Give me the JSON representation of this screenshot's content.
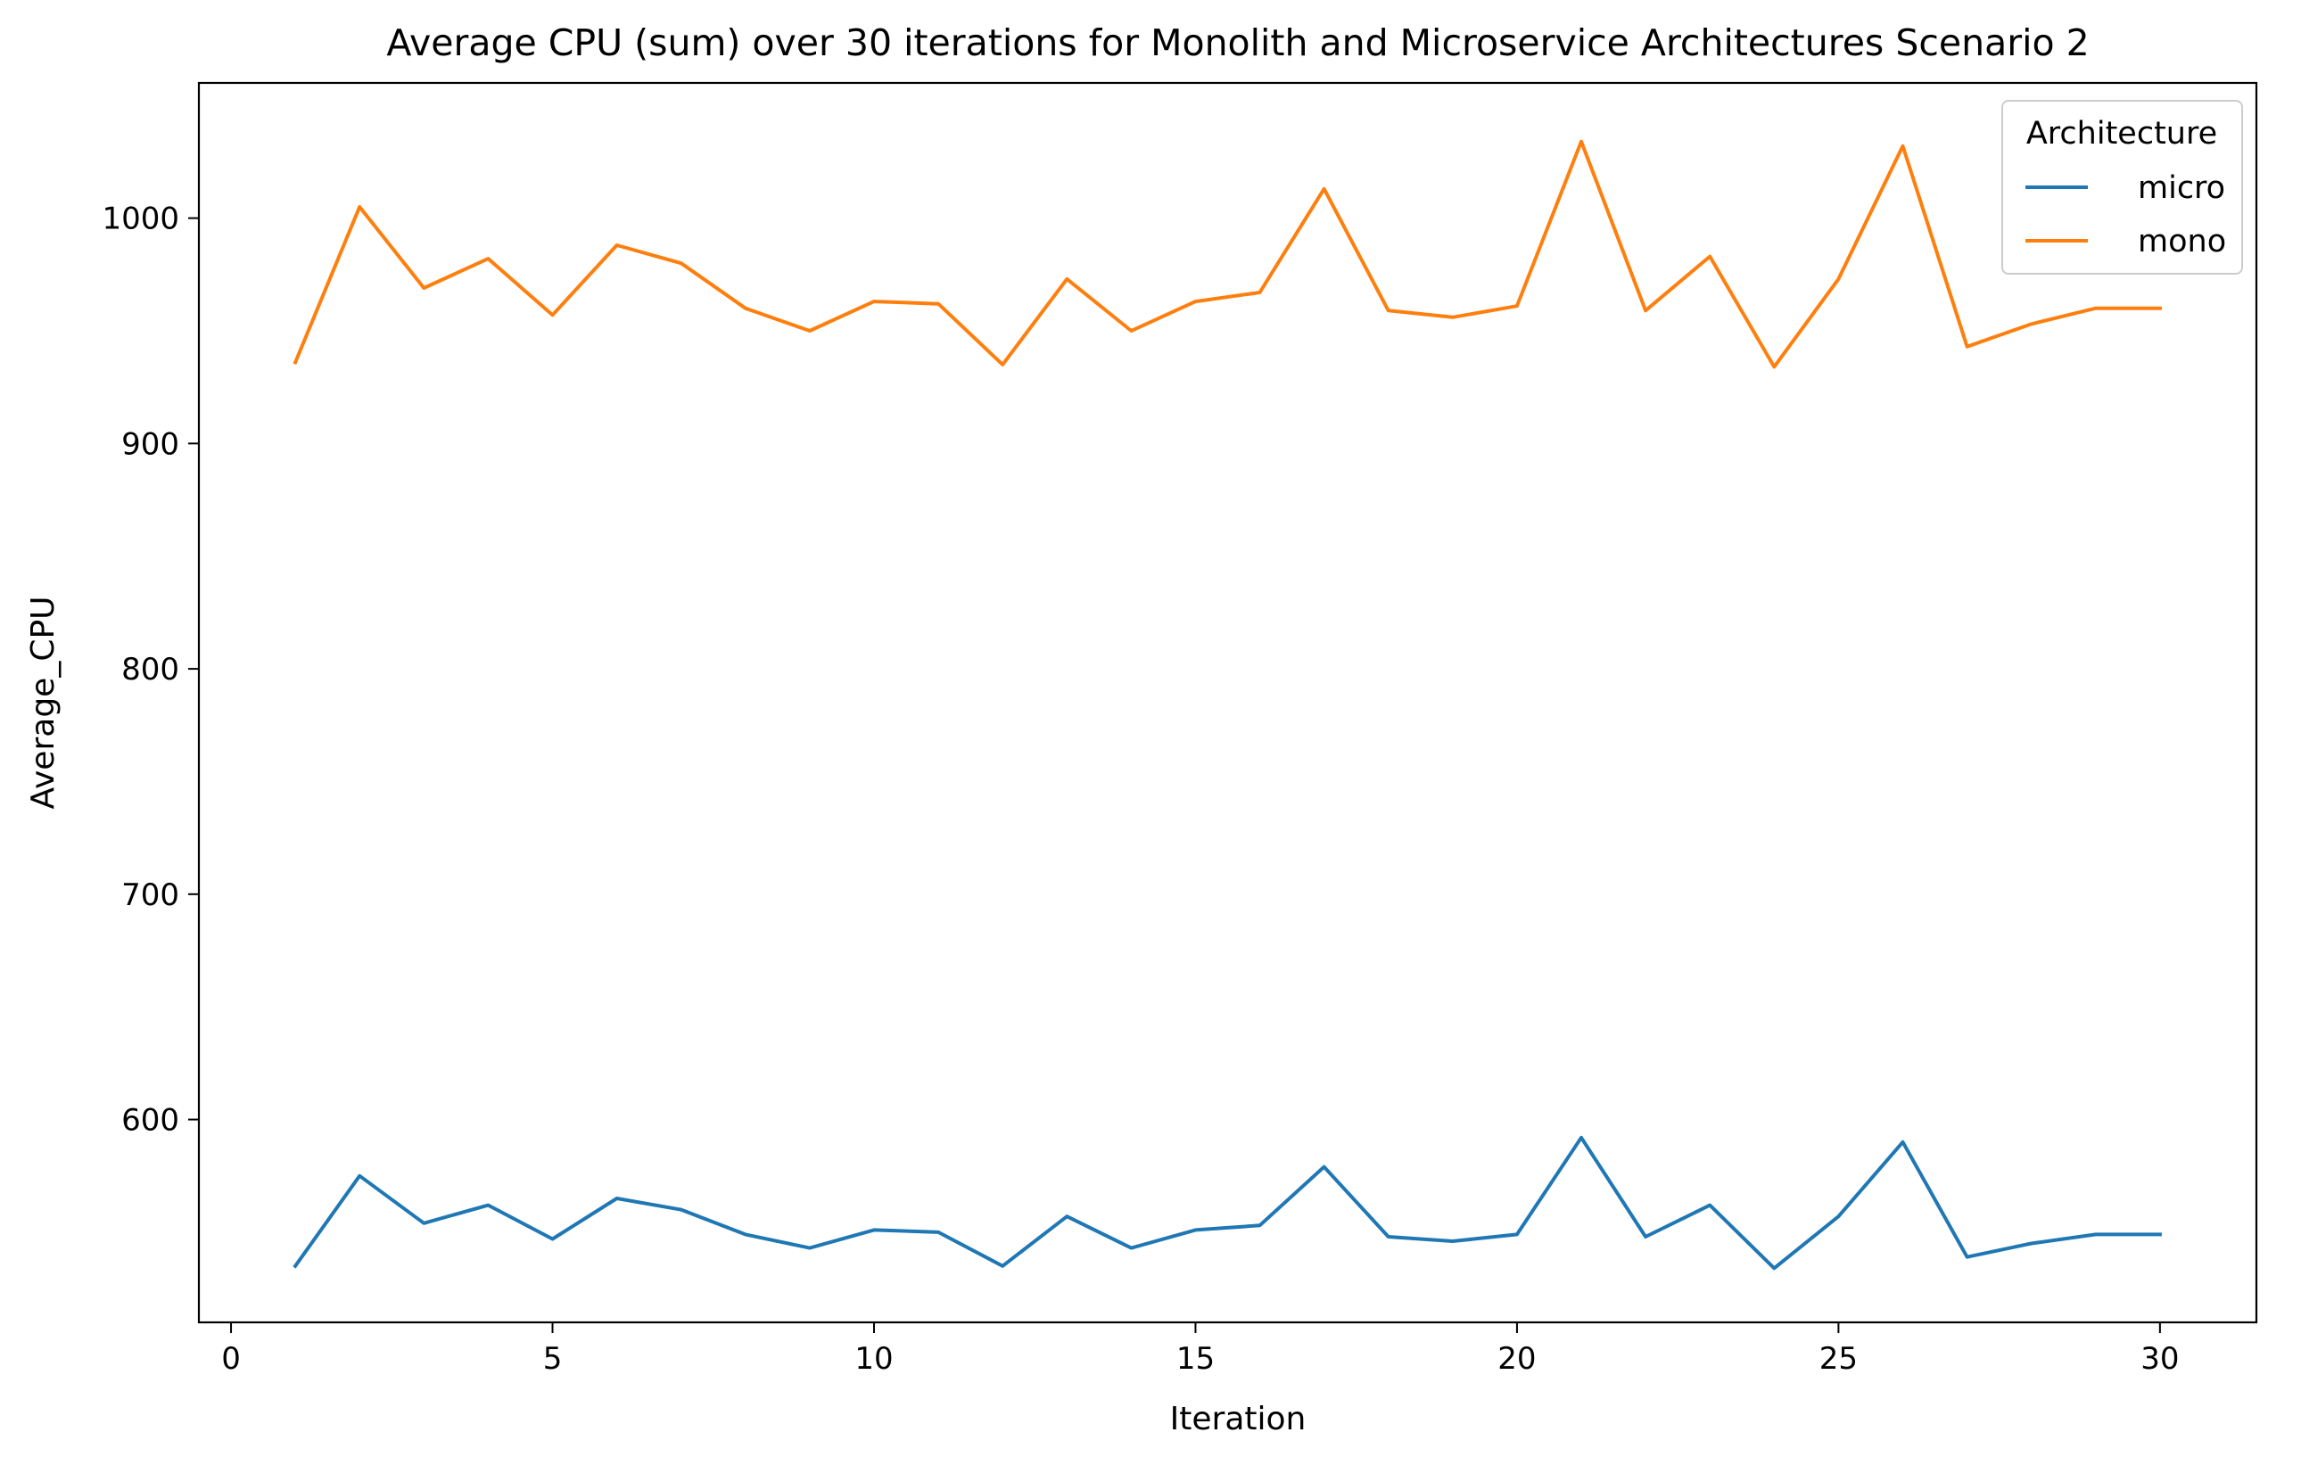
{
  "chart_data": {
    "type": "line",
    "title": "Average CPU (sum) over 30 iterations for Monolith and Microservice Architectures Scenario 2",
    "xlabel": "Iteration",
    "ylabel": "Average_CPU",
    "xlim": [
      -0.5,
      31.5
    ],
    "ylim": [
      510,
      1060
    ],
    "xticks": [
      0,
      5,
      10,
      15,
      20,
      25,
      30
    ],
    "yticks": [
      600,
      700,
      800,
      900,
      1000
    ],
    "grid": false,
    "legend": {
      "title": "Architecture",
      "placement": "top-right"
    },
    "x": [
      1,
      2,
      3,
      4,
      5,
      6,
      7,
      8,
      9,
      10,
      11,
      12,
      13,
      14,
      15,
      16,
      17,
      18,
      19,
      20,
      21,
      22,
      23,
      24,
      25,
      26,
      27,
      28,
      29,
      30
    ],
    "series": [
      {
        "name": "micro",
        "color": "#1f77b4",
        "values": [
          535,
          575,
          554,
          562,
          547,
          565,
          560,
          549,
          543,
          551,
          550,
          535,
          557,
          543,
          551,
          553,
          579,
          548,
          546,
          549,
          592,
          548,
          562,
          534,
          557,
          590,
          539,
          545,
          549,
          549
        ]
      },
      {
        "name": "mono",
        "color": "#ff7f0e",
        "values": [
          936,
          1005,
          969,
          982,
          957,
          988,
          980,
          960,
          950,
          963,
          962,
          935,
          973,
          950,
          963,
          967,
          1013,
          959,
          956,
          961,
          1034,
          959,
          983,
          934,
          973,
          1032,
          943,
          953,
          960,
          960
        ]
      }
    ]
  }
}
